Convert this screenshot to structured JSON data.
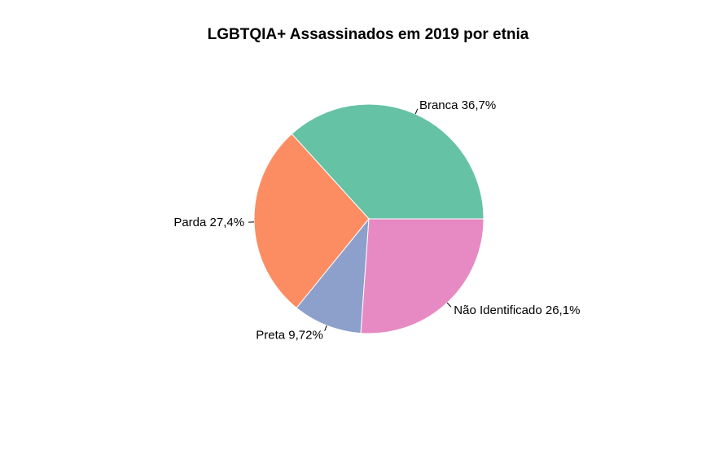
{
  "chart_data": {
    "type": "pie",
    "title": "LGBTQIA+ Assassinados em 2019 por etnia",
    "slices": [
      {
        "label": "Branca 36,7%",
        "value": 36.7,
        "color": "#66C2A5"
      },
      {
        "label": "Parda 27,4%",
        "value": 27.4,
        "color": "#FC8D62"
      },
      {
        "label": "Preta 9,72%",
        "value": 9.72,
        "color": "#8DA0CB"
      },
      {
        "label": "Não Identificado 26,1%",
        "value": 26.1,
        "color": "#E78AC3"
      }
    ],
    "direction": "counterclockwise",
    "start": "3 o'clock",
    "legend": "none"
  }
}
